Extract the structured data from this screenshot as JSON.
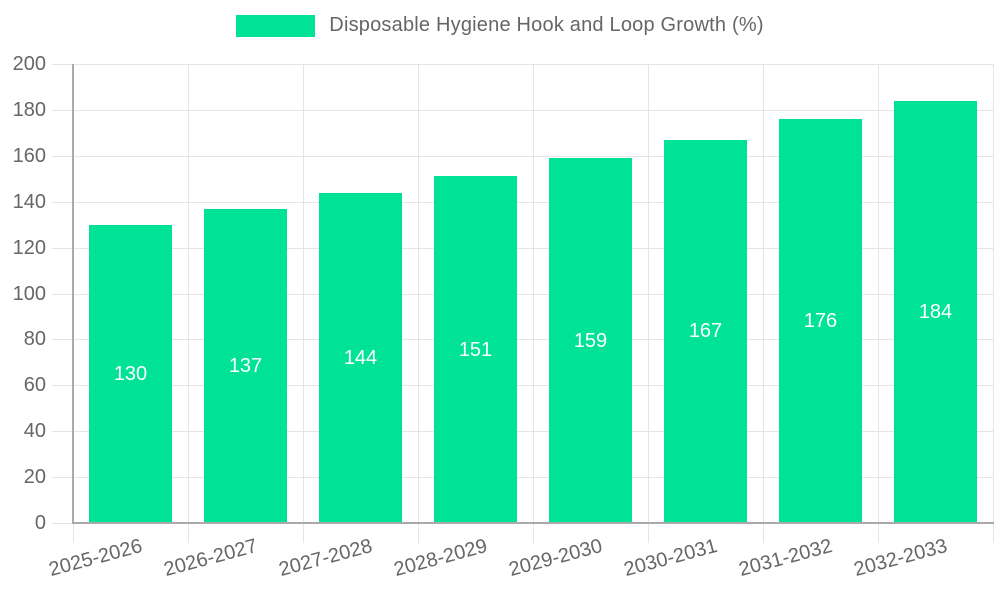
{
  "legend": {
    "label": "Disposable Hygiene Hook and Loop Growth (%)"
  },
  "colors": {
    "bar": "#00E396",
    "axis_label_text": "#666666",
    "axis_line": "#aaaaaa",
    "gridline": "#e5e5e5",
    "bar_value_label": "#ffffff",
    "background": "#ffffff"
  },
  "chart_data": {
    "type": "bar",
    "title": "Disposable Hygiene Hook and Loop Growth (%)",
    "categories": [
      "2025-2026",
      "2026-2027",
      "2027-2028",
      "2028-2029",
      "2029-2030",
      "2030-2031",
      "2031-2032",
      "2032-2033"
    ],
    "values": [
      130,
      137,
      144,
      151,
      159,
      167,
      176,
      184
    ],
    "yticks": [
      0,
      20,
      40,
      60,
      80,
      100,
      120,
      140,
      160,
      180,
      200
    ],
    "xlabel": "",
    "ylabel": "",
    "ylim": [
      0,
      200
    ],
    "ytick_step": 20,
    "grid": true,
    "legend_position": "top",
    "bar_value_labels": "inside-center",
    "x_label_rotation_deg": -15
  }
}
